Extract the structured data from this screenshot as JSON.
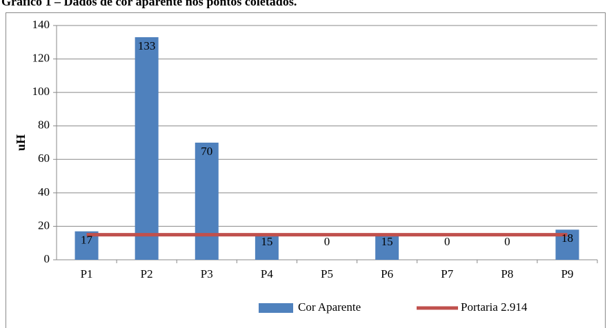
{
  "chart_data": {
    "type": "bar",
    "title": "Gráfico 1 – Dados de cor aparente nos pontos coletados.",
    "y_label": "uH",
    "categories": [
      "P1",
      "P2",
      "P3",
      "P4",
      "P5",
      "P6",
      "P7",
      "P8",
      "P9"
    ],
    "series": [
      {
        "name": "Cor Aparente",
        "type": "bar",
        "color": "#4f81bd",
        "values": [
          17,
          133,
          70,
          15,
          0,
          15,
          0,
          0,
          18
        ]
      },
      {
        "name": "Portaria 2.914",
        "type": "line",
        "color": "#c0504d",
        "values": [
          15,
          15,
          15,
          15,
          15,
          15,
          15,
          15,
          15
        ]
      }
    ],
    "ylim": [
      0,
      140
    ],
    "yticks": [
      0,
      20,
      40,
      60,
      80,
      100,
      120,
      140
    ],
    "grid": true,
    "legend": "bottom"
  }
}
